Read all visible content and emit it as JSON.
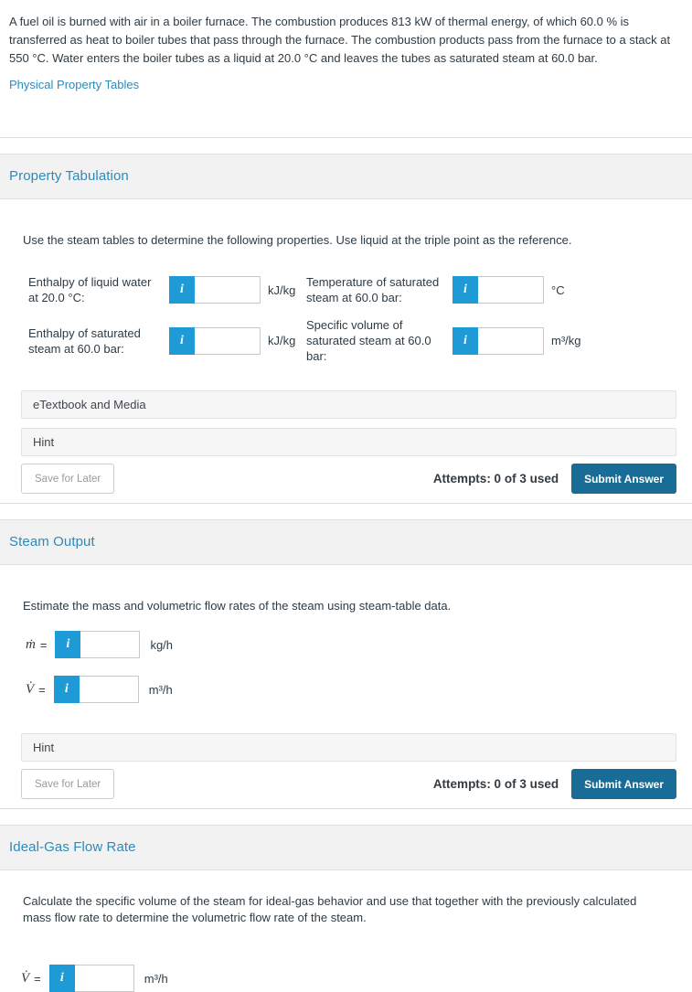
{
  "problem": {
    "statement": "A fuel oil is burned with air in a boiler furnace. The combustion produces 813 kW of thermal energy, of which 60.0 % is transferred as heat to boiler tubes that pass through the furnace. The combustion products pass from the furnace to a stack at 550 °C. Water enters the boiler tubes as a liquid at 20.0 °C and leaves the tubes as saturated steam at 60.0 bar.",
    "link_label": "Physical Property Tables"
  },
  "icons": {
    "info": "i"
  },
  "colors": {
    "accent_blue": "#1e9bd6",
    "heading_blue": "#2e8ab8",
    "submit_blue": "#186c96",
    "text": "#2d3b45"
  },
  "property_tabulation": {
    "title": "Property Tabulation",
    "instruction": "Use the steam tables to determine the following properties. Use liquid at the triple point as the reference.",
    "fields": [
      {
        "label": "Enthalpy of liquid water at 20.0 °C:",
        "value": "",
        "unit": "kJ/kg"
      },
      {
        "label": "Temperature of saturated steam at 60.0 bar:",
        "value": "",
        "unit": "°C"
      },
      {
        "label": "Enthalpy of saturated steam at 60.0 bar:",
        "value": "",
        "unit": "kJ/kg"
      },
      {
        "label": "Specific volume of saturated steam at 60.0 bar:",
        "value": "",
        "unit": "m³/kg"
      }
    ],
    "etextbook_label": "eTextbook and Media",
    "hint_label": "Hint",
    "save_label": "Save for Later",
    "attempts": "Attempts: 0 of 3 used",
    "submit_label": "Submit Answer"
  },
  "steam_output": {
    "title": "Steam Output",
    "instruction": "Estimate the mass and volumetric flow rates of the steam using steam-table data.",
    "fields": [
      {
        "symbol": "ṁ",
        "eq": "=",
        "value": "",
        "unit": "kg/h"
      },
      {
        "symbol": "V̇",
        "eq": "=",
        "value": "",
        "unit": "m³/h"
      }
    ],
    "hint_label": "Hint",
    "save_label": "Save for Later",
    "attempts": "Attempts: 0 of 3 used",
    "submit_label": "Submit Answer"
  },
  "ideal_gas": {
    "title": "Ideal-Gas Flow Rate",
    "instruction": "Calculate the specific volume of the steam for ideal-gas behavior and use that together with the previously calculated mass flow rate to determine the volumetric flow rate of the steam.",
    "fields": [
      {
        "symbol": "V̇",
        "eq": "=",
        "value": "",
        "unit": "m³/h"
      }
    ]
  }
}
